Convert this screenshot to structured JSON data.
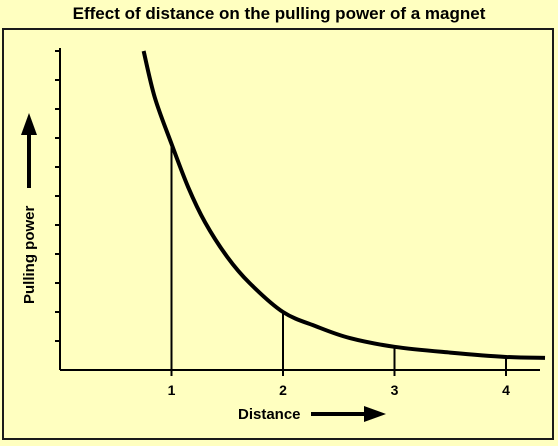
{
  "chart_data": {
    "type": "line",
    "title": "Effect of distance on the pulling power of a magnet",
    "xlabel": "Distance",
    "ylabel": "Pulling power",
    "xlim": [
      0,
      4.35
    ],
    "ylim": [
      0,
      11
    ],
    "x_ticks": [
      "1",
      "2",
      "3",
      "4"
    ],
    "y_ticks_labeled": false,
    "grid": false,
    "legend": "none",
    "series": [
      {
        "values_note": "",
        "x": [
          0.75,
          0.85,
          1.0,
          1.15,
          1.3,
          1.5,
          1.7,
          2.0,
          2.3,
          2.6,
          3.0,
          3.5,
          4.0,
          4.35
        ],
        "y": [
          11.0,
          9.4,
          7.8,
          6.3,
          5.1,
          3.9,
          3.0,
          2.0,
          1.5,
          1.1,
          0.8,
          0.6,
          0.45,
          0.42
        ]
      }
    ],
    "drop_lines": [
      {
        "x": 1,
        "y": 7.8
      },
      {
        "x": 2,
        "y": 2.0
      },
      {
        "x": 3,
        "y": 0.8
      },
      {
        "x": 4,
        "y": 0.45
      }
    ],
    "colors": {
      "background": "#ffffc0",
      "line": "#000000"
    }
  }
}
